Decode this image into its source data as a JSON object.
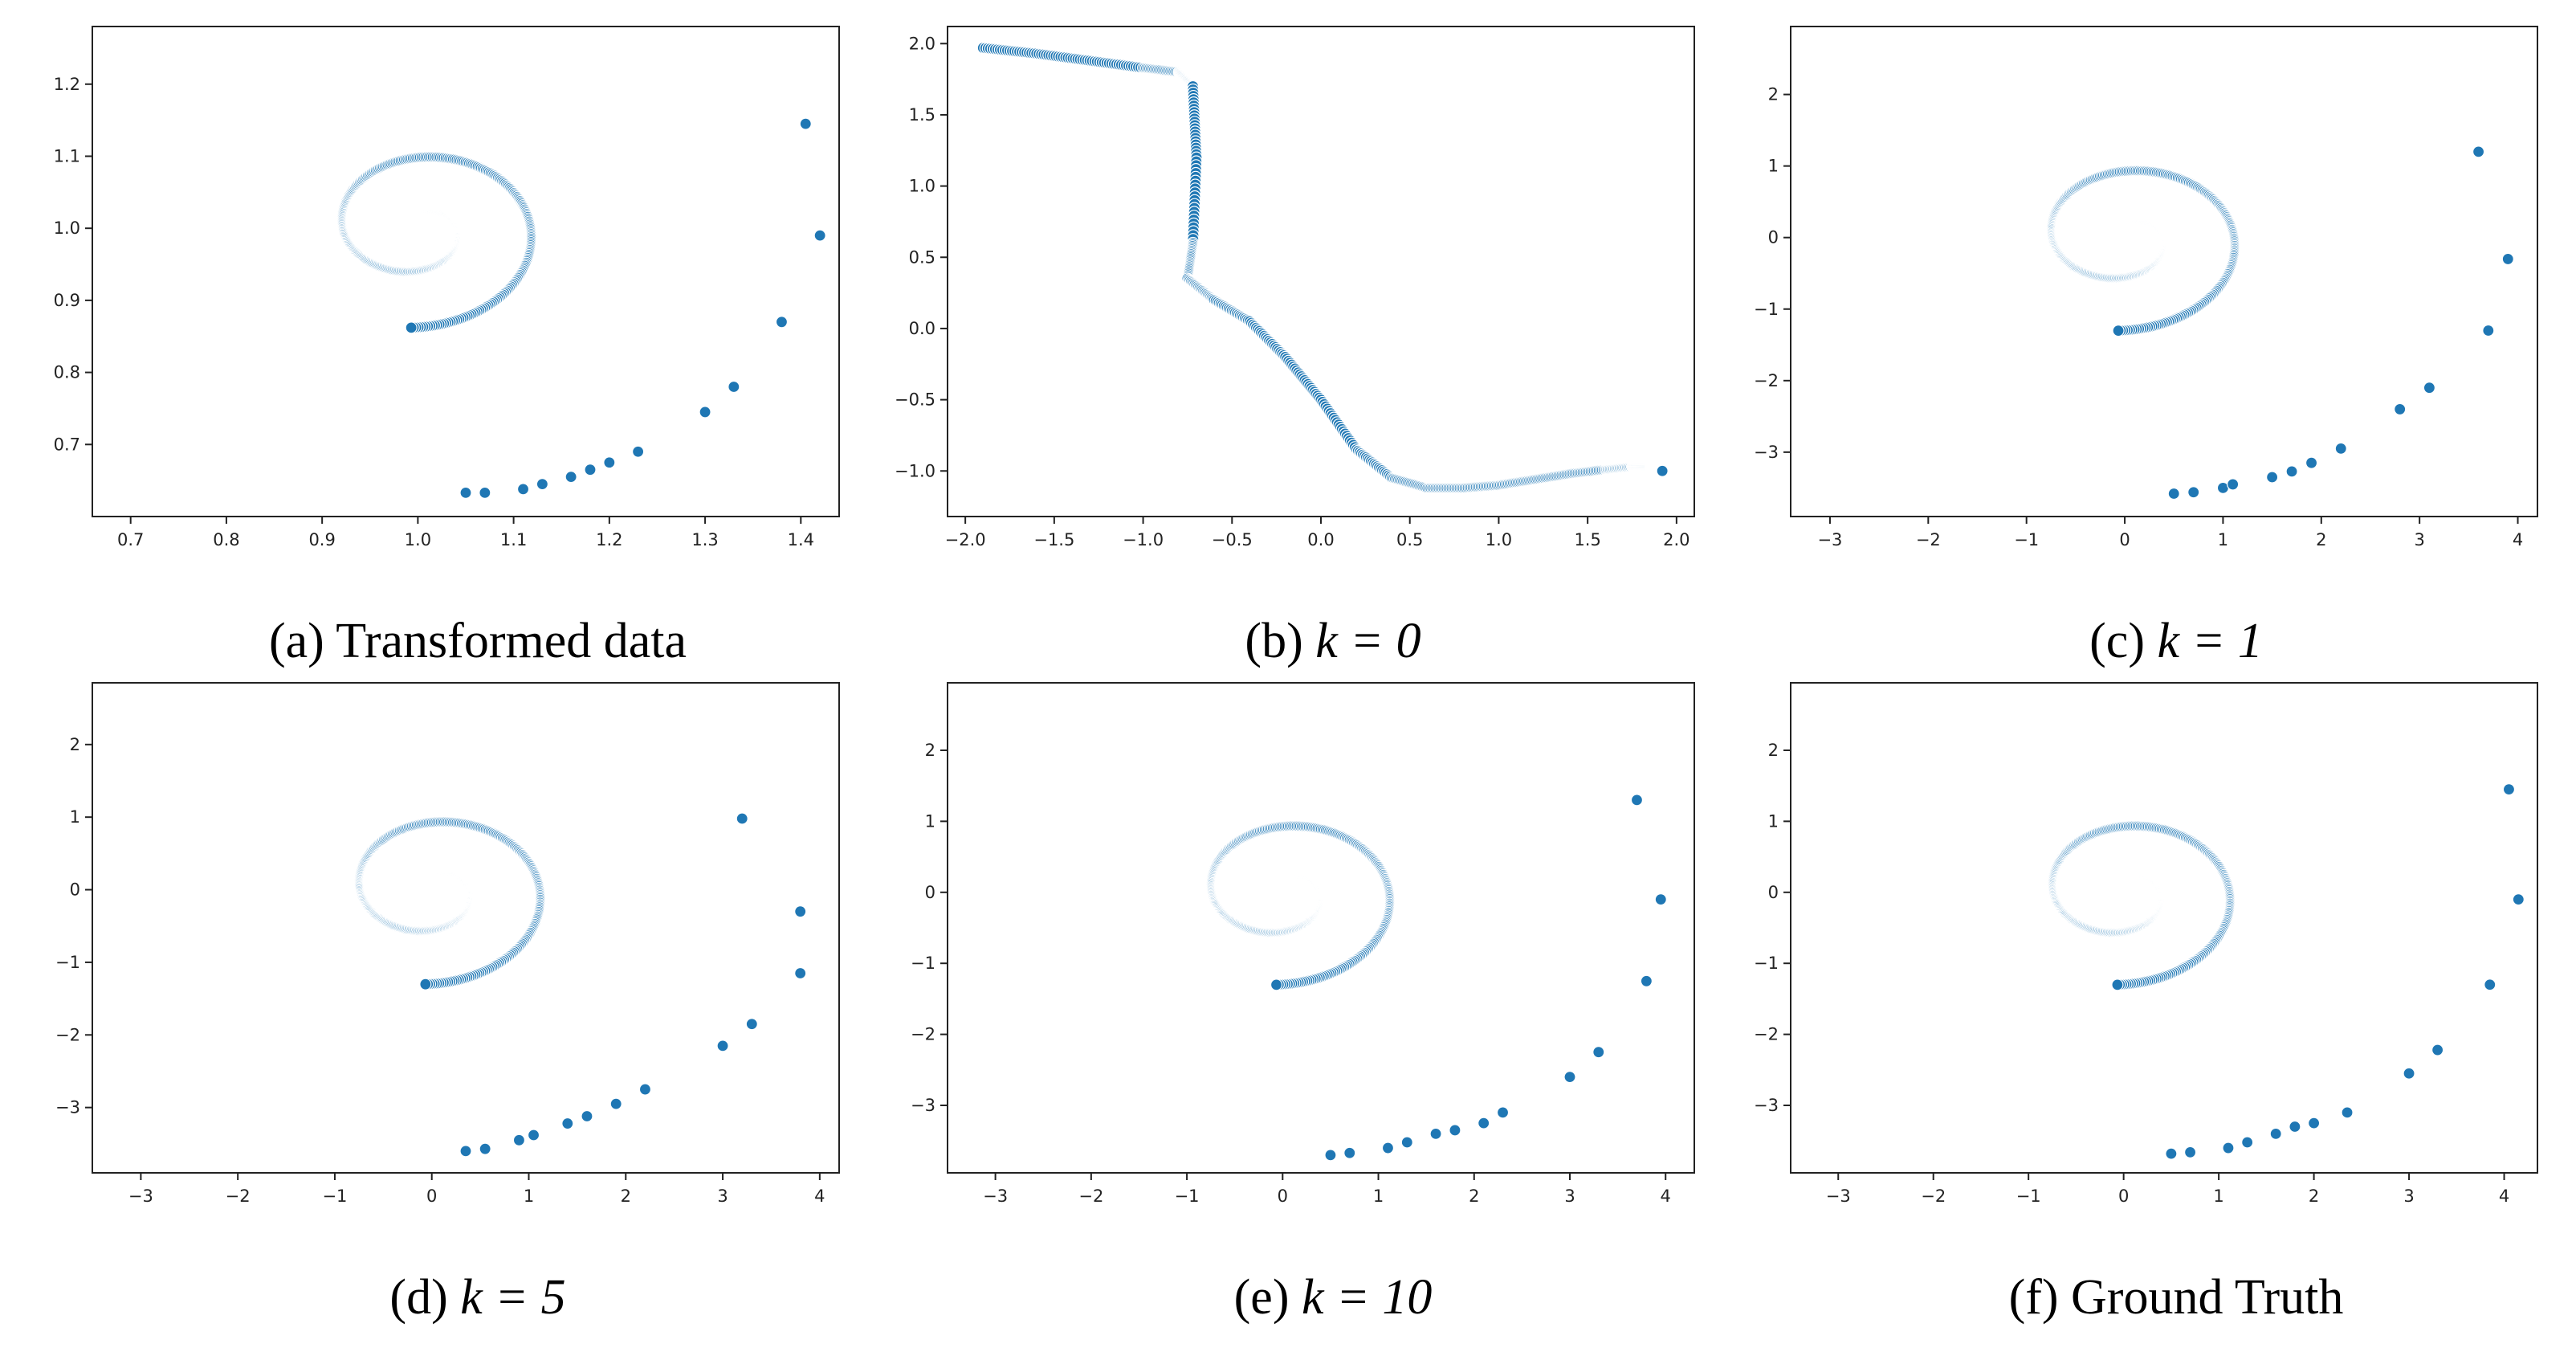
{
  "figure": {
    "marker_color": "#1f77b4",
    "panels": [
      {
        "caption_prefix": "(a) Transformed data",
        "caption_math": "",
        "chart_data": {
          "type": "scatter",
          "title": "",
          "xlabel": "",
          "ylabel": "",
          "xlim": [
            0.66,
            1.44
          ],
          "ylim": [
            0.6,
            1.28
          ],
          "xticks": [
            "0.7",
            "0.8",
            "0.9",
            "1.0",
            "1.1",
            "1.2",
            "1.3",
            "1.4"
          ],
          "yticks": [
            "0.7",
            "0.8",
            "0.9",
            "1.0",
            "1.1",
            "1.2"
          ],
          "grid": false,
          "spiral": {
            "cx": 1.0,
            "cy": 1.0,
            "a": 0.0125,
            "sx": 1.0,
            "sy": 1.0,
            "rotation": 0.0
          },
          "tail_points": [
            [
              1.05,
              0.633
            ],
            [
              1.07,
              0.633
            ],
            [
              1.11,
              0.638
            ],
            [
              1.13,
              0.645
            ],
            [
              1.16,
              0.655
            ],
            [
              1.18,
              0.665
            ],
            [
              1.2,
              0.675
            ],
            [
              1.23,
              0.69
            ],
            [
              1.3,
              0.745
            ],
            [
              1.33,
              0.78
            ],
            [
              1.38,
              0.87
            ],
            [
              1.405,
              1.145
            ],
            [
              1.42,
              0.99
            ]
          ]
        }
      },
      {
        "caption_prefix": "(b) ",
        "caption_math": "k = 0",
        "chart_data": {
          "type": "scatter",
          "title": "",
          "xlabel": "",
          "ylabel": "",
          "xlim": [
            -2.1,
            2.1
          ],
          "ylim": [
            -1.32,
            2.12
          ],
          "xticks": [
            "−2.0",
            "−1.5",
            "−1.0",
            "−0.5",
            "0.0",
            "0.5",
            "1.0",
            "1.5",
            "2.0"
          ],
          "yticks": [
            "−1.0",
            "−0.5",
            "0.0",
            "0.5",
            "1.0",
            "1.5",
            "2.0"
          ],
          "grid": false,
          "curve_points": [
            [
              -1.9,
              1.97
            ],
            [
              -1.6,
              1.93
            ],
            [
              -1.3,
              1.88
            ],
            [
              -1.0,
              1.83
            ],
            [
              -0.8,
              1.8
            ],
            [
              -0.72,
              1.7
            ],
            [
              -0.7,
              1.2
            ],
            [
              -0.72,
              0.6
            ],
            [
              -0.75,
              0.35
            ],
            [
              -0.6,
              0.2
            ],
            [
              -0.4,
              0.05
            ],
            [
              -0.2,
              -0.2
            ],
            [
              0.0,
              -0.5
            ],
            [
              0.2,
              -0.85
            ],
            [
              0.4,
              -1.05
            ],
            [
              0.6,
              -1.12
            ],
            [
              0.8,
              -1.12
            ],
            [
              1.0,
              -1.1
            ],
            [
              1.2,
              -1.06
            ],
            [
              1.4,
              -1.02
            ],
            [
              1.6,
              -0.99
            ],
            [
              1.75,
              -0.97
            ],
            [
              1.85,
              -0.97
            ],
            [
              1.92,
              -1.0
            ]
          ]
        }
      },
      {
        "caption_prefix": "(c) ",
        "caption_math": "k = 1",
        "chart_data": {
          "type": "scatter",
          "title": "",
          "xlabel": "",
          "ylabel": "",
          "xlim": [
            -3.4,
            4.2
          ],
          "ylim": [
            -3.9,
            2.95
          ],
          "xticks": [
            "−3",
            "−2",
            "−1",
            "0",
            "1",
            "2",
            "3",
            "4"
          ],
          "yticks": [
            "−3",
            "−2",
            "−1",
            "0",
            "1",
            "2"
          ],
          "grid": false,
          "spiral": {
            "cx": 0.0,
            "cy": 0.0,
            "a": 0.118,
            "sx": 1.0,
            "sy": 1.0,
            "rotation": 0.0
          },
          "tail_points": [
            [
              0.5,
              -3.58
            ],
            [
              0.7,
              -3.56
            ],
            [
              1.0,
              -3.5
            ],
            [
              1.1,
              -3.45
            ],
            [
              1.5,
              -3.35
            ],
            [
              1.7,
              -3.27
            ],
            [
              1.9,
              -3.15
            ],
            [
              2.2,
              -2.95
            ],
            [
              2.8,
              -2.4
            ],
            [
              3.1,
              -2.1
            ],
            [
              3.7,
              -1.3
            ],
            [
              3.6,
              1.2
            ],
            [
              3.9,
              -0.3
            ]
          ]
        }
      },
      {
        "caption_prefix": "(d) ",
        "caption_math": "k = 5",
        "chart_data": {
          "type": "scatter",
          "title": "",
          "xlabel": "",
          "ylabel": "",
          "xlim": [
            -3.5,
            4.2
          ],
          "ylim": [
            -3.9,
            2.85
          ],
          "xticks": [
            "−3",
            "−2",
            "−1",
            "0",
            "1",
            "2",
            "3",
            "4"
          ],
          "yticks": [
            "−3",
            "−2",
            "−1",
            "0",
            "1",
            "2"
          ],
          "grid": false,
          "spiral": {
            "cx": 0.0,
            "cy": 0.0,
            "a": 0.118,
            "sx": 1.0,
            "sy": 1.0,
            "rotation": 0.0
          },
          "tail_points": [
            [
              0.35,
              -3.6
            ],
            [
              0.55,
              -3.57
            ],
            [
              0.9,
              -3.45
            ],
            [
              1.05,
              -3.38
            ],
            [
              1.4,
              -3.22
            ],
            [
              1.6,
              -3.12
            ],
            [
              1.9,
              -2.95
            ],
            [
              2.2,
              -2.75
            ],
            [
              3.0,
              -2.15
            ],
            [
              3.3,
              -1.85
            ],
            [
              3.8,
              -1.15
            ],
            [
              3.2,
              0.98
            ],
            [
              3.8,
              -0.3
            ]
          ]
        }
      },
      {
        "caption_prefix": "(e) ",
        "caption_math": "k = 10",
        "chart_data": {
          "type": "scatter",
          "title": "",
          "xlabel": "",
          "ylabel": "",
          "xlim": [
            -3.5,
            4.3
          ],
          "ylim": [
            -3.95,
            2.95
          ],
          "xticks": [
            "−3",
            "−2",
            "−1",
            "0",
            "1",
            "2",
            "3",
            "4"
          ],
          "yticks": [
            "−3",
            "−2",
            "−1",
            "0",
            "1",
            "2"
          ],
          "grid": false,
          "spiral": {
            "cx": 0.0,
            "cy": 0.0,
            "a": 0.118,
            "sx": 1.0,
            "sy": 1.0,
            "rotation": 0.0
          },
          "tail_points": [
            [
              0.5,
              -3.7
            ],
            [
              0.7,
              -3.67
            ],
            [
              1.1,
              -3.6
            ],
            [
              1.3,
              -3.52
            ],
            [
              1.6,
              -3.4
            ],
            [
              1.8,
              -3.35
            ],
            [
              2.1,
              -3.25
            ],
            [
              2.3,
              -3.1
            ],
            [
              3.0,
              -2.6
            ],
            [
              3.3,
              -2.25
            ],
            [
              3.8,
              -1.25
            ],
            [
              3.7,
              1.3
            ],
            [
              3.95,
              -0.1
            ]
          ]
        }
      },
      {
        "caption_prefix": "(f) Ground Truth",
        "caption_math": "",
        "chart_data": {
          "type": "scatter",
          "title": "",
          "xlabel": "",
          "ylabel": "",
          "xlim": [
            -3.5,
            4.35
          ],
          "ylim": [
            -3.95,
            2.95
          ],
          "xticks": [
            "−3",
            "−2",
            "−1",
            "0",
            "1",
            "2",
            "3",
            "4"
          ],
          "yticks": [
            "−3",
            "−2",
            "−1",
            "0",
            "1",
            "2"
          ],
          "grid": false,
          "spiral": {
            "cx": 0.0,
            "cy": 0.0,
            "a": 0.118,
            "sx": 1.0,
            "sy": 1.0,
            "rotation": 0.0
          },
          "tail_points": [
            [
              0.5,
              -3.68
            ],
            [
              0.7,
              -3.66
            ],
            [
              1.1,
              -3.6
            ],
            [
              1.3,
              -3.52
            ],
            [
              1.6,
              -3.4
            ],
            [
              1.8,
              -3.3
            ],
            [
              2.0,
              -3.25
            ],
            [
              2.35,
              -3.1
            ],
            [
              3.0,
              -2.55
            ],
            [
              3.3,
              -2.22
            ],
            [
              3.85,
              -1.3
            ],
            [
              4.05,
              1.45
            ],
            [
              4.15,
              -0.1
            ]
          ]
        }
      }
    ]
  }
}
